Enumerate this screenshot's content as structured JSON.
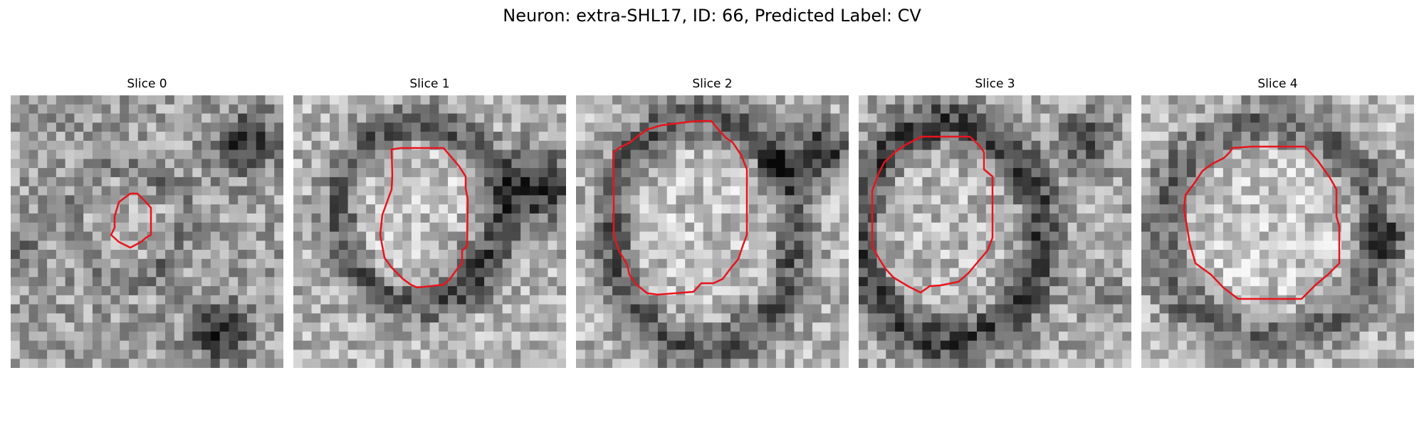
{
  "figure": {
    "title": "Neuron: extra-SHL17, ID: 66, Predicted Label: CV"
  },
  "panels": [
    {
      "label": "Slice 0"
    },
    {
      "label": "Slice 1"
    },
    {
      "label": "Slice 2"
    },
    {
      "label": "Slice 3"
    },
    {
      "label": "Slice 4"
    }
  ],
  "colors": {
    "contour": "#e8141c"
  },
  "image": {
    "grid": "30x30 grayscale microscopy patch per slice"
  }
}
